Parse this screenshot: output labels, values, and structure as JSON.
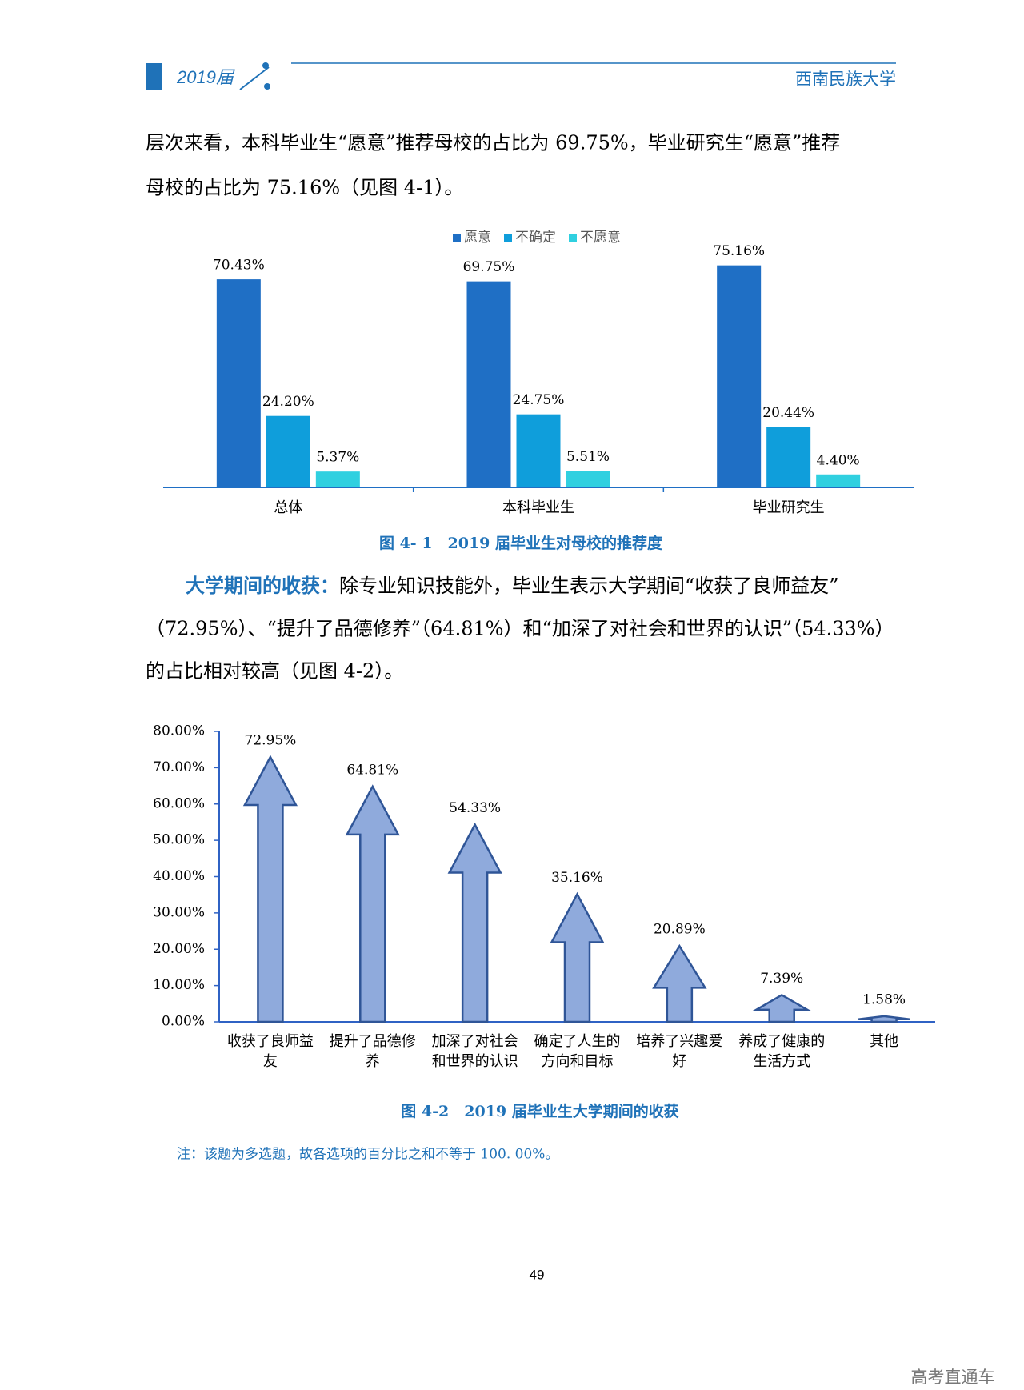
{
  "header": {
    "edition": "2019届",
    "school": "西南民族大学"
  },
  "paragraphs": [
    {
      "lines": [
        "层次来看，本科毕业生“愿意”推荐母校的占比为 69.75%，毕业研究生“愿意”推荐",
        "母校的占比为 75.16%（见图 4-1）。"
      ]
    },
    {
      "lead": "大学期间的收获：",
      "lines": [
        "除专业知识技能外，毕业生表示大学期间“收获了良师益友”",
        "（72.95%）、“提升了品德修养”（64.81%）和“加深了对社会和世界的认识”（54.33%）",
        "的占比相对较高（见图 4-2）。"
      ]
    }
  ],
  "chart_data": [
    {
      "type": "bar",
      "title": "图 4- 1　2019 届毕业生对母校的推荐度",
      "categories": [
        "总体",
        "本科毕业生",
        "毕业研究生"
      ],
      "series": [
        {
          "name": "愿意",
          "color": "#1f6fc5",
          "values": [
            70.43,
            69.75,
            75.16
          ],
          "value_labels": [
            "70.43%",
            "69.75%",
            "75.16%"
          ]
        },
        {
          "name": "不确定",
          "color": "#0f9edb",
          "values": [
            24.2,
            24.75,
            20.44
          ],
          "value_labels": [
            "24.20%",
            "24.75%",
            "20.44%"
          ]
        },
        {
          "name": "不愿意",
          "color": "#30d0e0",
          "values": [
            5.37,
            5.51,
            4.4
          ],
          "value_labels": [
            "5.37%",
            "5.51%",
            "4.40%"
          ]
        }
      ],
      "legend": "top"
    },
    {
      "type": "arrow",
      "title": "图 4-2　2019 届毕业生大学期间的收获",
      "categories": [
        "收获了良师益友",
        "提升了品德修养",
        "加深了对社会和世界的认识",
        "确定了人生的方向和目标",
        "培养了兴趣爱好",
        "养成了健康的生活方式",
        "其他"
      ],
      "values": [
        72.95,
        64.81,
        54.33,
        35.16,
        20.89,
        7.39,
        1.58
      ],
      "value_labels": [
        "72.95%",
        "64.81%",
        "54.33%",
        "35.16%",
        "20.89%",
        "7.39%",
        "1.58%"
      ],
      "color": "#8faadc",
      "ylim": [
        0,
        80
      ],
      "yticks": [
        {
          "value": 0,
          "label": "0.00%"
        },
        {
          "value": 10,
          "label": "10.00%"
        },
        {
          "value": 20,
          "label": "20.00%"
        },
        {
          "value": 30,
          "label": "30.00%"
        },
        {
          "value": 40,
          "label": "40.00%"
        },
        {
          "value": 50,
          "label": "50.00%"
        },
        {
          "value": 60,
          "label": "60.00%"
        },
        {
          "value": 70,
          "label": "70.00%"
        },
        {
          "value": 80,
          "label": "80.00%"
        }
      ]
    }
  ],
  "note": "注：该题为多选题，故各选项的百分比之和不等于 100. 00%。",
  "page_number": "49",
  "watermark": "高考直通车"
}
